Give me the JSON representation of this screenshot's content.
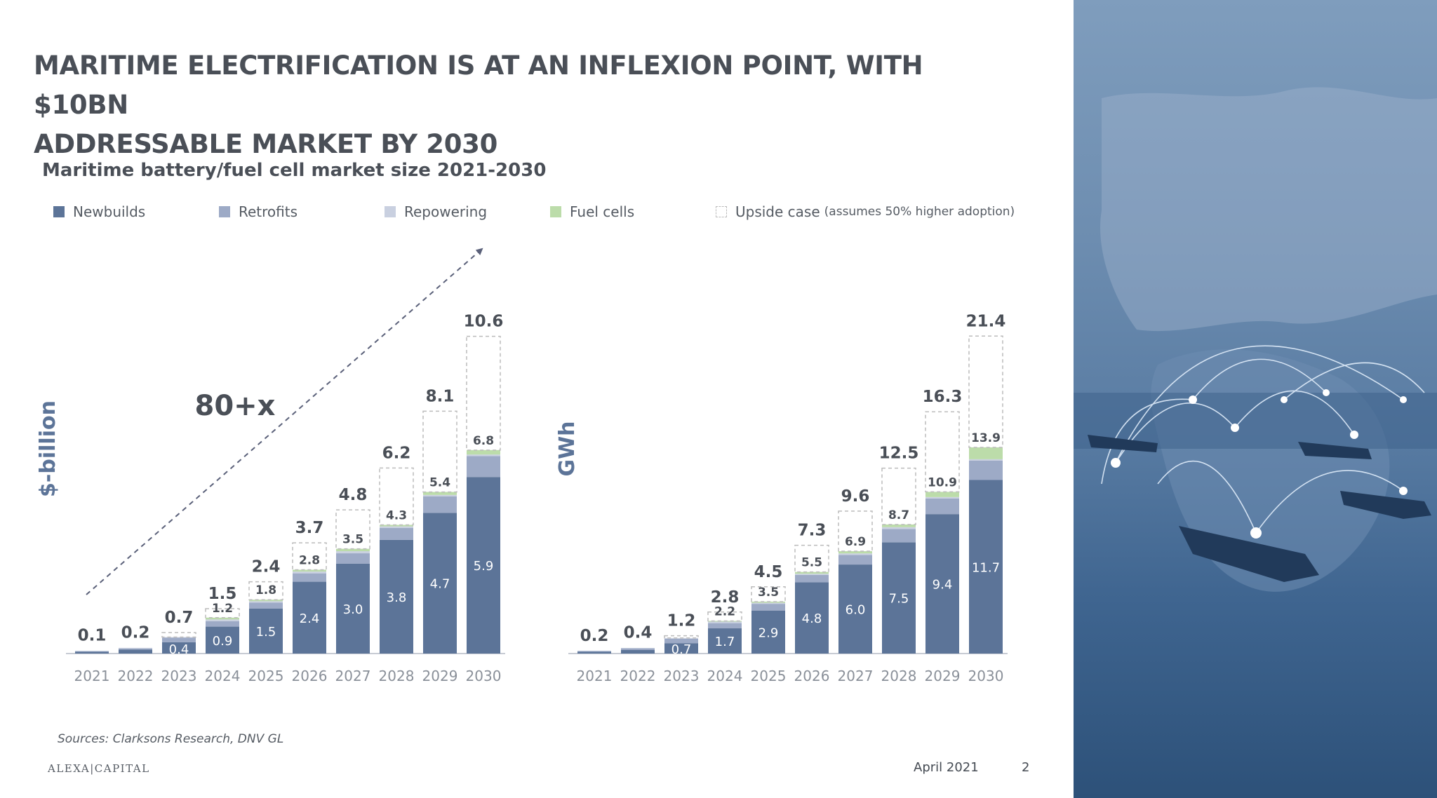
{
  "slide": {
    "title_line1": "MARITIME ELECTRIFICATION IS AT AN INFLEXION POINT, WITH $10BN",
    "title_line2": "ADDRESSABLE MARKET BY 2030",
    "chart_title": "Maritime battery/fuel cell market size 2021-2030",
    "sources": "Sources: Clarksons Research, DNV GL",
    "logo_text": "ALEXA|CAPITAL",
    "date": "April 2021",
    "page_number": "2"
  },
  "legend": {
    "items": [
      {
        "label": "Newbuilds",
        "color": "#5c7498"
      },
      {
        "label": "Retrofits",
        "color": "#9daac6"
      },
      {
        "label": "Repowering",
        "color": "#c9d0e0"
      },
      {
        "label": "Fuel cells",
        "color": "#bcdcaa"
      },
      {
        "label": "Upside case",
        "note": "(assumes 50% higher adoption)",
        "color": "#bcbcbc"
      }
    ]
  },
  "chart_data": [
    {
      "type": "bar",
      "stacked": true,
      "ylabel": "$-billion",
      "annotation": "80+x",
      "categories": [
        "2021",
        "2022",
        "2023",
        "2024",
        "2025",
        "2026",
        "2027",
        "2028",
        "2029",
        "2030"
      ],
      "newbuilds_labels": [
        "",
        "",
        "0.4",
        "0.9",
        "1.5",
        "2.4",
        "3.0",
        "3.8",
        "4.7",
        "5.9"
      ],
      "series": [
        {
          "name": "Newbuilds",
          "values": [
            0.06,
            0.13,
            0.38,
            0.9,
            1.5,
            2.4,
            3.0,
            3.8,
            4.7,
            5.9
          ]
        },
        {
          "name": "Retrofits",
          "values": [
            0.02,
            0.04,
            0.15,
            0.18,
            0.2,
            0.28,
            0.35,
            0.4,
            0.55,
            0.7
          ]
        },
        {
          "name": "Repowering",
          "values": [
            0.01,
            0.02,
            0.02,
            0.06,
            0.05,
            0.06,
            0.07,
            0.05,
            0.05,
            0.05
          ]
        },
        {
          "name": "Fuel cells",
          "values": [
            0.0,
            0.0,
            0.0,
            0.06,
            0.05,
            0.06,
            0.08,
            0.05,
            0.1,
            0.15
          ]
        }
      ],
      "base_totals": [
        null,
        null,
        null,
        1.2,
        1.8,
        2.8,
        3.5,
        4.3,
        5.4,
        6.8
      ],
      "upside_totals": [
        0.1,
        0.2,
        0.7,
        1.5,
        2.4,
        3.7,
        4.8,
        6.2,
        8.1,
        10.6
      ],
      "ylim": [
        0,
        11.6
      ]
    },
    {
      "type": "bar",
      "stacked": true,
      "ylabel": "GWh",
      "categories": [
        "2021",
        "2022",
        "2023",
        "2024",
        "2025",
        "2026",
        "2027",
        "2028",
        "2029",
        "2030"
      ],
      "newbuilds_labels": [
        "",
        "",
        "0.7",
        "1.7",
        "2.9",
        "4.8",
        "6.0",
        "7.5",
        "9.4",
        "11.7"
      ],
      "series": [
        {
          "name": "Newbuilds",
          "values": [
            0.12,
            0.25,
            0.7,
            1.7,
            2.9,
            4.8,
            6.0,
            7.5,
            9.4,
            11.7
          ]
        },
        {
          "name": "Retrofits",
          "values": [
            0.05,
            0.1,
            0.3,
            0.35,
            0.45,
            0.5,
            0.65,
            0.9,
            1.05,
            1.3
          ]
        },
        {
          "name": "Repowering",
          "values": [
            0.02,
            0.03,
            0.05,
            0.1,
            0.07,
            0.08,
            0.1,
            0.12,
            0.1,
            0.1
          ]
        },
        {
          "name": "Fuel cells",
          "values": [
            0.0,
            0.0,
            0.0,
            0.05,
            0.08,
            0.12,
            0.15,
            0.18,
            0.35,
            0.8
          ]
        }
      ],
      "base_totals": [
        null,
        null,
        null,
        2.2,
        3.5,
        5.5,
        6.9,
        8.7,
        10.9,
        13.9
      ],
      "upside_totals": [
        0.2,
        0.4,
        1.2,
        2.8,
        4.5,
        7.3,
        9.6,
        12.5,
        16.3,
        21.4
      ],
      "ylim": [
        0,
        23.4
      ]
    }
  ]
}
